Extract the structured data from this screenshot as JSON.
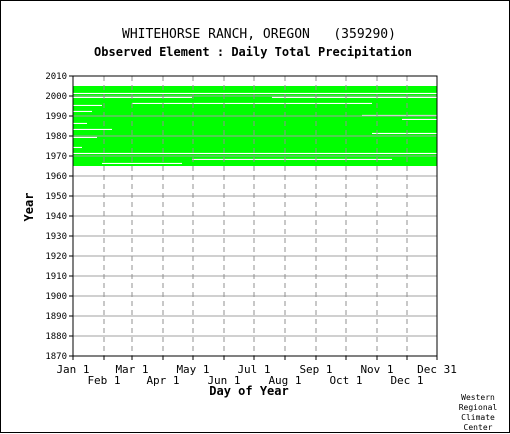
{
  "chart_data": {
    "type": "heatmap",
    "title": "WHITEHORSE RANCH, OREGON   (359290)",
    "subtitle": "Observed Element : Daily Total Precipitation",
    "xlabel": "Day of Year",
    "ylabel": "Year",
    "x_ticks_upper": [
      "Jan 1",
      "Mar 1",
      "May 1",
      "Jul 1",
      "Sep 1",
      "Nov 1",
      "Dec 31"
    ],
    "x_ticks_lower": [
      "Feb 1",
      "Apr 1",
      "Jun 1",
      "Aug 1",
      "Oct 1",
      "Dec 1"
    ],
    "x_tick_days_upper": [
      1,
      60,
      121,
      182,
      244,
      305,
      365
    ],
    "x_tick_days_lower": [
      32,
      91,
      152,
      213,
      274,
      335
    ],
    "xlim": [
      1,
      365
    ],
    "y_ticks": [
      1870,
      1880,
      1890,
      1900,
      1910,
      1920,
      1930,
      1940,
      1950,
      1960,
      1970,
      1980,
      1990,
      2000,
      2010
    ],
    "ylim": [
      1870,
      2010
    ],
    "grid": true,
    "data_color": "#00ff00",
    "credit": [
      "Western",
      "Regional",
      "Climate",
      "Center"
    ],
    "coverage": [
      {
        "from": 2003,
        "to": 2005,
        "start_day": 1,
        "end_day": 150
      },
      {
        "from": 2003,
        "to": 2005,
        "start_day": 150,
        "end_day": 365
      },
      {
        "from": 2000,
        "to": 2003,
        "start_day": 1,
        "end_day": 365
      },
      {
        "from": 1998,
        "to": 2000,
        "start_day": 1,
        "end_day": 365
      },
      {
        "from": 1996,
        "to": 1998,
        "start_day": 1,
        "end_day": 365
      },
      {
        "from": 1984,
        "to": 1996,
        "start_day": 1,
        "end_day": 365
      },
      {
        "from": 1982,
        "to": 1984,
        "start_day": 1,
        "end_day": 365
      },
      {
        "from": 1977,
        "to": 1982,
        "start_day": 1,
        "end_day": 365
      },
      {
        "from": 1972,
        "to": 1977,
        "start_day": 1,
        "end_day": 365
      },
      {
        "from": 1967,
        "to": 1972,
        "start_day": 1,
        "end_day": 365
      },
      {
        "from": 1965,
        "to": 1967,
        "start_day": 1,
        "end_day": 365
      }
    ],
    "gaps": [
      {
        "year": 2001,
        "start_day": 1,
        "end_day": 365
      },
      {
        "year": 1999,
        "start_day": 1,
        "end_day": 120
      },
      {
        "year": 1999,
        "start_day": 200,
        "end_day": 365
      },
      {
        "year": 1996,
        "start_day": 60,
        "end_day": 300
      },
      {
        "year": 1995,
        "start_day": 1,
        "end_day": 30
      },
      {
        "year": 1992,
        "start_day": 1,
        "end_day": 20
      },
      {
        "year": 1990,
        "start_day": 290,
        "end_day": 365
      },
      {
        "year": 1988,
        "start_day": 330,
        "end_day": 365
      },
      {
        "year": 1986,
        "start_day": 1,
        "end_day": 15
      },
      {
        "year": 1983,
        "start_day": 1,
        "end_day": 40
      },
      {
        "year": 1981,
        "start_day": 300,
        "end_day": 365
      },
      {
        "year": 1979,
        "start_day": 1,
        "end_day": 25
      },
      {
        "year": 1974,
        "start_day": 1,
        "end_day": 10
      },
      {
        "year": 1971,
        "start_day": 1,
        "end_day": 365
      },
      {
        "year": 1968,
        "start_day": 120,
        "end_day": 320
      },
      {
        "year": 1966,
        "start_day": 30,
        "end_day": 110
      }
    ]
  }
}
